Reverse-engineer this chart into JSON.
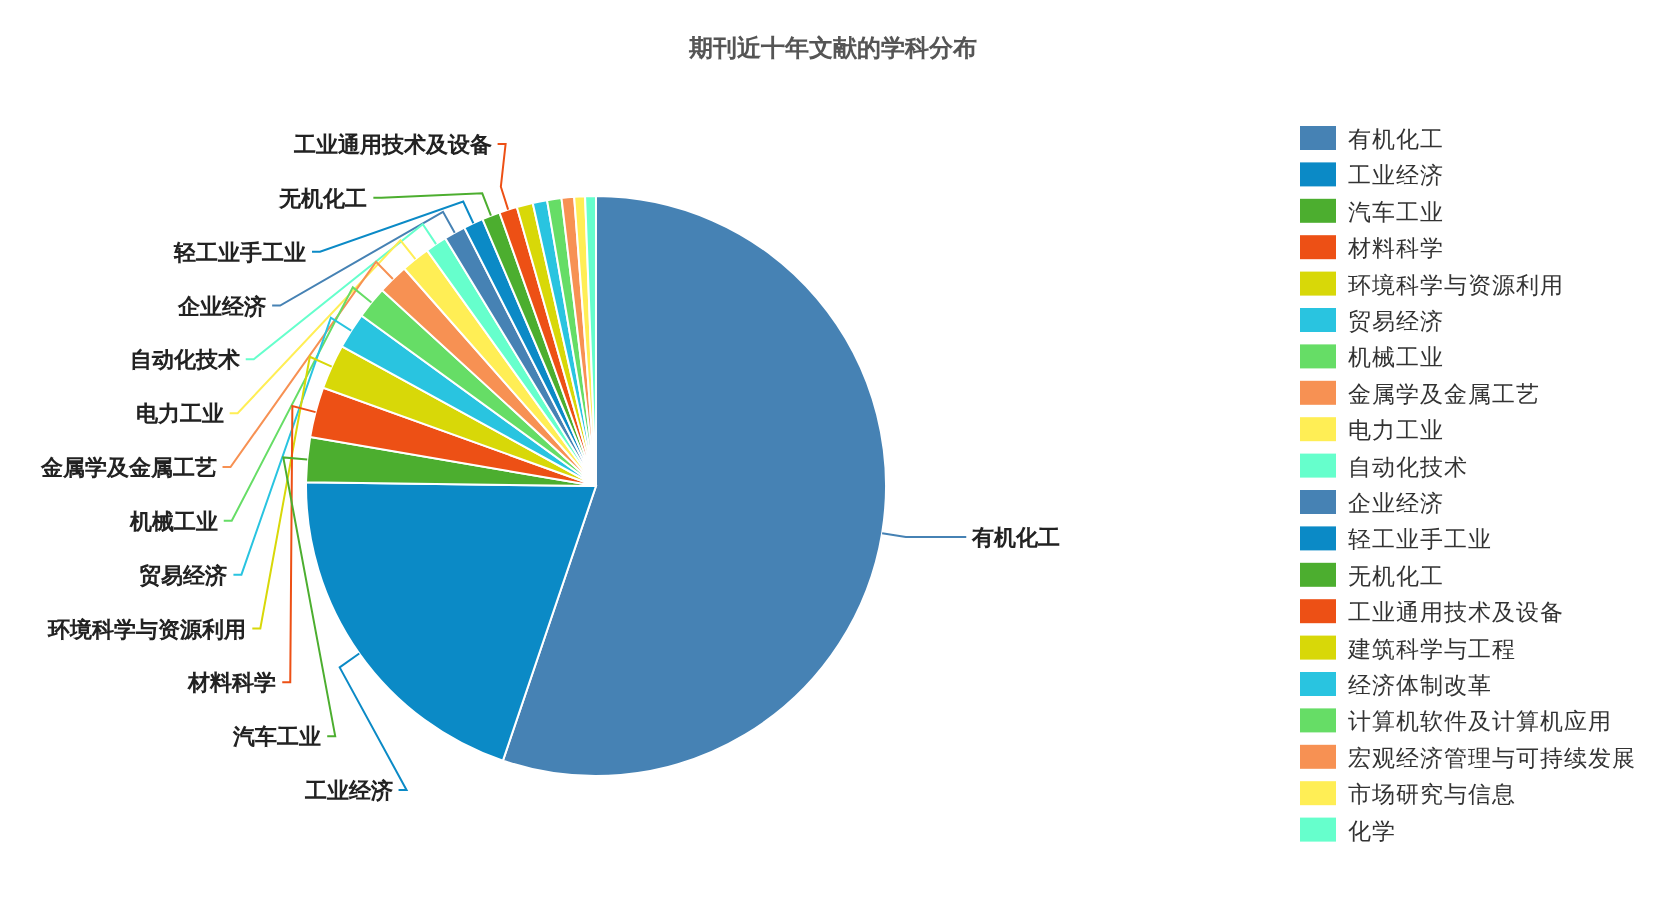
{
  "chart_data": {
    "type": "pie",
    "title": "期刊近十年文献的学科分布",
    "categories": [
      "有机化工",
      "工业经济",
      "汽车工业",
      "材料科学",
      "环境科学与资源利用",
      "贸易经济",
      "机械工业",
      "金属学及金属工艺",
      "电力工业",
      "自动化技术",
      "企业经济",
      "轻工业手工业",
      "无机化工",
      "工业通用技术及设备",
      "建筑科学与工程",
      "经济体制改革",
      "计算机软件及计算机应用",
      "宏观经济管理与可持续发展",
      "市场研究与信息",
      "化学"
    ],
    "values": [
      55.2,
      20,
      2.5,
      2.8,
      2.5,
      2,
      1.8,
      1.7,
      1.6,
      1.2,
      1.2,
      1.1,
      1,
      1,
      0.9,
      0.8,
      0.8,
      0.7,
      0.6,
      0.6
    ],
    "colors": [
      "#4682b4",
      "#0b8ac6",
      "#4cae2f",
      "#ed5015",
      "#d8d808",
      "#29c4e0",
      "#66dd66",
      "#f79153",
      "#ffee55",
      "#66ffcc",
      "#4682b4",
      "#0b8ac6",
      "#4cae2f",
      "#ed5015",
      "#d8d808",
      "#29c4e0",
      "#66dd66",
      "#f79153",
      "#ffee55",
      "#66ffcc"
    ],
    "legend": "right"
  }
}
